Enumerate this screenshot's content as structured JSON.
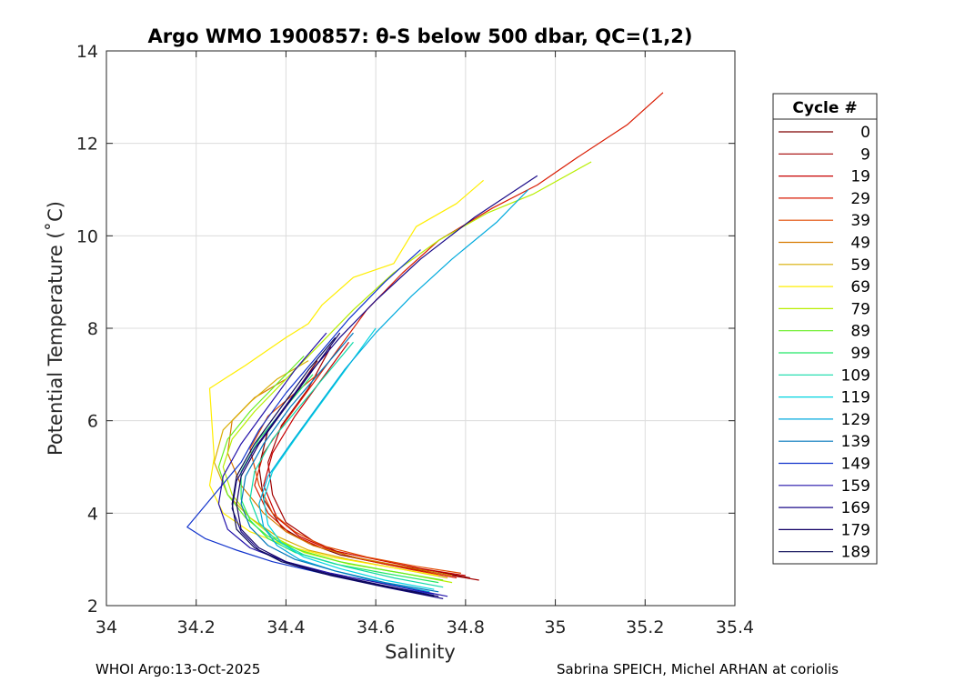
{
  "chart_data": {
    "type": "line",
    "title": "Argo WMO 1900857: θ-S below 500 dbar,  QC=(1,2)",
    "xlabel": "Salinity",
    "ylabel": "Potential Temperature (˚C)",
    "xlim": [
      34,
      35.4
    ],
    "ylim": [
      2,
      14
    ],
    "xticks": [
      "34",
      "34.2",
      "34.4",
      "34.6",
      "34.8",
      "35",
      "35.2",
      "35.4"
    ],
    "yticks": [
      "2",
      "4",
      "6",
      "8",
      "10",
      "12",
      "14"
    ],
    "grid": true,
    "legend_title": "Cycle #",
    "legend_position": "outside-right",
    "legend": [
      {
        "label": "0",
        "color": "#7f0000"
      },
      {
        "label": "9",
        "color": "#a30000"
      },
      {
        "label": "19",
        "color": "#c70000"
      },
      {
        "label": "29",
        "color": "#d91a00"
      },
      {
        "label": "39",
        "color": "#e24a00"
      },
      {
        "label": "49",
        "color": "#d77a00"
      },
      {
        "label": "59",
        "color": "#d9ad00"
      },
      {
        "label": "69",
        "color": "#ffee00"
      },
      {
        "label": "79",
        "color": "#b8ee00"
      },
      {
        "label": "89",
        "color": "#66ee22"
      },
      {
        "label": "99",
        "color": "#22e866"
      },
      {
        "label": "109",
        "color": "#11d9a8"
      },
      {
        "label": "119",
        "color": "#00d4e0"
      },
      {
        "label": "129",
        "color": "#00aadd"
      },
      {
        "label": "139",
        "color": "#0077bb"
      },
      {
        "label": "149",
        "color": "#1133cc"
      },
      {
        "label": "159",
        "color": "#2211aa"
      },
      {
        "label": "169",
        "color": "#1a0a88"
      },
      {
        "label": "179",
        "color": "#110066"
      },
      {
        "label": "189",
        "color": "#0a0a55"
      }
    ],
    "series": [
      {
        "name": "0",
        "color": "#7f0000",
        "x": [
          34.81,
          34.73,
          34.62,
          34.52,
          34.45,
          34.39,
          34.35,
          34.34,
          34.36,
          34.42,
          34.47
        ],
        "y": [
          2.6,
          2.75,
          2.9,
          3.1,
          3.35,
          3.7,
          4.3,
          5.0,
          5.8,
          6.6,
          7.3
        ]
      },
      {
        "name": "9",
        "color": "#a30000",
        "x": [
          34.83,
          34.74,
          34.63,
          34.53,
          34.46,
          34.4,
          34.37,
          34.36,
          34.39,
          34.45,
          34.5
        ],
        "y": [
          2.55,
          2.7,
          2.88,
          3.1,
          3.4,
          3.8,
          4.4,
          5.1,
          5.9,
          6.7,
          7.6
        ]
      },
      {
        "name": "19",
        "color": "#c70000",
        "x": [
          34.8,
          34.7,
          34.6,
          34.5,
          34.43,
          34.38,
          34.35,
          34.37,
          34.42,
          34.48,
          34.54
        ],
        "y": [
          2.65,
          2.8,
          3.0,
          3.2,
          3.5,
          3.9,
          4.6,
          5.3,
          6.1,
          6.9,
          7.7
        ]
      },
      {
        "name": "29",
        "color": "#d91a00",
        "x": [
          34.78,
          34.68,
          34.57,
          34.48,
          34.41,
          34.36,
          34.33,
          34.35,
          34.4,
          34.46,
          34.52,
          34.58,
          34.66,
          34.74,
          34.86,
          34.96,
          35.05,
          35.16,
          35.24
        ],
        "y": [
          2.6,
          2.78,
          3.0,
          3.25,
          3.55,
          4.0,
          4.6,
          5.3,
          6.0,
          6.8,
          7.6,
          8.4,
          9.2,
          9.9,
          10.6,
          11.1,
          11.7,
          12.4,
          13.1
        ]
      },
      {
        "name": "39",
        "color": "#e24a00",
        "x": [
          34.79,
          34.69,
          34.58,
          34.48,
          34.42,
          34.37,
          34.34,
          34.32,
          34.36,
          34.42,
          34.47
        ],
        "y": [
          2.7,
          2.85,
          3.05,
          3.3,
          3.6,
          4.0,
          4.6,
          5.4,
          6.1,
          6.6,
          7.0
        ]
      },
      {
        "name": "49",
        "color": "#d77a00",
        "x": [
          34.77,
          34.66,
          34.55,
          34.46,
          34.4,
          34.35,
          34.3,
          34.27,
          34.28,
          34.33,
          34.4
        ],
        "y": [
          2.65,
          2.85,
          3.05,
          3.3,
          3.6,
          4.0,
          4.6,
          5.3,
          6.0,
          6.5,
          6.9
        ]
      },
      {
        "name": "59",
        "color": "#d9ad00",
        "x": [
          34.76,
          34.65,
          34.54,
          34.45,
          34.38,
          34.32,
          34.27,
          34.24,
          34.26,
          34.32,
          34.38,
          34.45
        ],
        "y": [
          2.6,
          2.8,
          3.0,
          3.2,
          3.5,
          3.9,
          4.4,
          5.1,
          5.8,
          6.4,
          6.9,
          7.3
        ]
      },
      {
        "name": "69",
        "color": "#ffee00",
        "x": [
          34.74,
          34.62,
          34.5,
          34.4,
          34.32,
          34.26,
          34.23,
          34.24,
          34.23,
          34.31,
          34.4,
          34.45,
          34.48,
          34.55,
          34.64,
          34.69,
          34.78,
          34.84
        ],
        "y": [
          2.65,
          2.85,
          3.05,
          3.3,
          3.6,
          4.0,
          4.6,
          5.2,
          6.7,
          7.2,
          7.8,
          8.1,
          8.5,
          9.1,
          9.4,
          10.2,
          10.7,
          11.2
        ]
      },
      {
        "name": "79",
        "color": "#b8ee00",
        "x": [
          34.77,
          34.66,
          34.54,
          34.44,
          34.37,
          34.32,
          34.28,
          34.26,
          34.28,
          34.33,
          34.4,
          34.47,
          34.55,
          34.64,
          34.74,
          34.85,
          34.95,
          35.08
        ],
        "y": [
          2.5,
          2.7,
          2.9,
          3.15,
          3.5,
          3.9,
          4.4,
          5.0,
          5.6,
          6.2,
          6.9,
          7.6,
          8.4,
          9.2,
          9.9,
          10.5,
          10.9,
          11.6
        ]
      },
      {
        "name": "89",
        "color": "#66ee22",
        "x": [
          34.75,
          34.63,
          34.52,
          34.43,
          34.36,
          34.31,
          34.27,
          34.25,
          34.27,
          34.32,
          34.38,
          34.44
        ],
        "y": [
          2.55,
          2.75,
          2.95,
          3.2,
          3.5,
          3.9,
          4.4,
          5.0,
          5.6,
          6.2,
          6.8,
          7.4
        ]
      },
      {
        "name": "99",
        "color": "#22e866",
        "x": [
          34.74,
          34.62,
          34.51,
          34.42,
          34.36,
          34.32,
          34.3,
          34.3,
          34.34,
          34.4,
          34.46
        ],
        "y": [
          2.5,
          2.7,
          2.9,
          3.15,
          3.45,
          3.85,
          4.3,
          4.9,
          5.6,
          6.3,
          7.0
        ]
      },
      {
        "name": "109",
        "color": "#11d9a8",
        "x": [
          34.75,
          34.64,
          34.53,
          34.44,
          34.38,
          34.34,
          34.32,
          34.33,
          34.37,
          34.43,
          34.49,
          34.55
        ],
        "y": [
          2.4,
          2.6,
          2.85,
          3.1,
          3.4,
          3.8,
          4.3,
          4.9,
          5.6,
          6.3,
          7.0,
          7.7
        ]
      },
      {
        "name": "119",
        "color": "#00d4e0",
        "x": [
          34.73,
          34.62,
          34.52,
          34.44,
          34.39,
          34.36,
          34.35,
          34.37,
          34.42,
          34.48,
          34.54,
          34.6
        ],
        "y": [
          2.35,
          2.55,
          2.8,
          3.05,
          3.35,
          3.75,
          4.3,
          4.9,
          5.6,
          6.4,
          7.2,
          8.0
        ]
      },
      {
        "name": "129",
        "color": "#00aadd",
        "x": [
          34.72,
          34.61,
          34.51,
          34.43,
          34.38,
          34.35,
          34.34,
          34.36,
          34.41,
          34.47,
          34.53,
          34.6,
          34.68,
          34.77,
          34.87,
          34.94
        ],
        "y": [
          2.3,
          2.5,
          2.75,
          3.0,
          3.3,
          3.7,
          4.2,
          4.8,
          5.5,
          6.3,
          7.1,
          7.9,
          8.7,
          9.5,
          10.3,
          11.0
        ]
      },
      {
        "name": "139",
        "color": "#0077bb",
        "x": [
          34.74,
          34.62,
          34.51,
          34.42,
          34.36,
          34.32,
          34.3,
          34.31,
          34.35,
          34.41,
          34.48,
          34.55
        ],
        "y": [
          2.3,
          2.5,
          2.75,
          3.0,
          3.3,
          3.7,
          4.2,
          4.8,
          5.5,
          6.3,
          7.1,
          7.9
        ]
      },
      {
        "name": "149",
        "color": "#1133cc",
        "x": [
          34.73,
          34.6,
          34.48,
          34.37,
          34.29,
          34.22,
          34.18,
          34.24,
          34.3,
          34.34,
          34.4,
          34.47,
          34.54,
          34.62,
          34.7
        ],
        "y": [
          2.25,
          2.45,
          2.7,
          2.95,
          3.2,
          3.45,
          3.7,
          4.4,
          5.1,
          5.8,
          6.6,
          7.4,
          8.2,
          9.0,
          9.7
        ]
      },
      {
        "name": "159",
        "color": "#2211aa",
        "x": [
          34.76,
          34.63,
          34.5,
          34.4,
          34.32,
          34.27,
          34.25,
          34.26,
          34.3,
          34.36,
          34.42,
          34.49
        ],
        "y": [
          2.2,
          2.45,
          2.7,
          2.95,
          3.25,
          3.65,
          4.2,
          4.8,
          5.5,
          6.3,
          7.1,
          7.9
        ]
      },
      {
        "name": "169",
        "color": "#1a0a88",
        "x": [
          34.75,
          34.62,
          34.5,
          34.41,
          34.34,
          34.3,
          34.28,
          34.29,
          34.33,
          34.39,
          34.45,
          34.52,
          34.6,
          34.7,
          34.82,
          34.96
        ],
        "y": [
          2.15,
          2.4,
          2.65,
          2.9,
          3.2,
          3.6,
          4.1,
          4.7,
          5.4,
          6.2,
          7.0,
          7.8,
          8.6,
          9.5,
          10.4,
          11.3
        ]
      },
      {
        "name": "179",
        "color": "#110066",
        "x": [
          34.74,
          34.61,
          34.49,
          34.4,
          34.34,
          34.3,
          34.29,
          34.3,
          34.34,
          34.4,
          34.46,
          34.52
        ],
        "y": [
          2.2,
          2.45,
          2.7,
          2.95,
          3.25,
          3.65,
          4.2,
          4.8,
          5.5,
          6.3,
          7.1,
          7.9
        ]
      },
      {
        "name": "189",
        "color": "#0a0a55",
        "x": [
          34.73,
          34.6,
          34.48,
          34.39,
          34.33,
          34.29,
          34.28,
          34.29,
          34.33,
          34.39,
          34.45,
          34.51
        ],
        "y": [
          2.2,
          2.45,
          2.7,
          2.95,
          3.25,
          3.65,
          4.2,
          4.8,
          5.5,
          6.3,
          7.1,
          7.8
        ]
      }
    ]
  },
  "footer": {
    "left": "WHOI Argo:13-Oct-2025",
    "right": "Sabrina SPEICH, Michel ARHAN at coriolis"
  }
}
